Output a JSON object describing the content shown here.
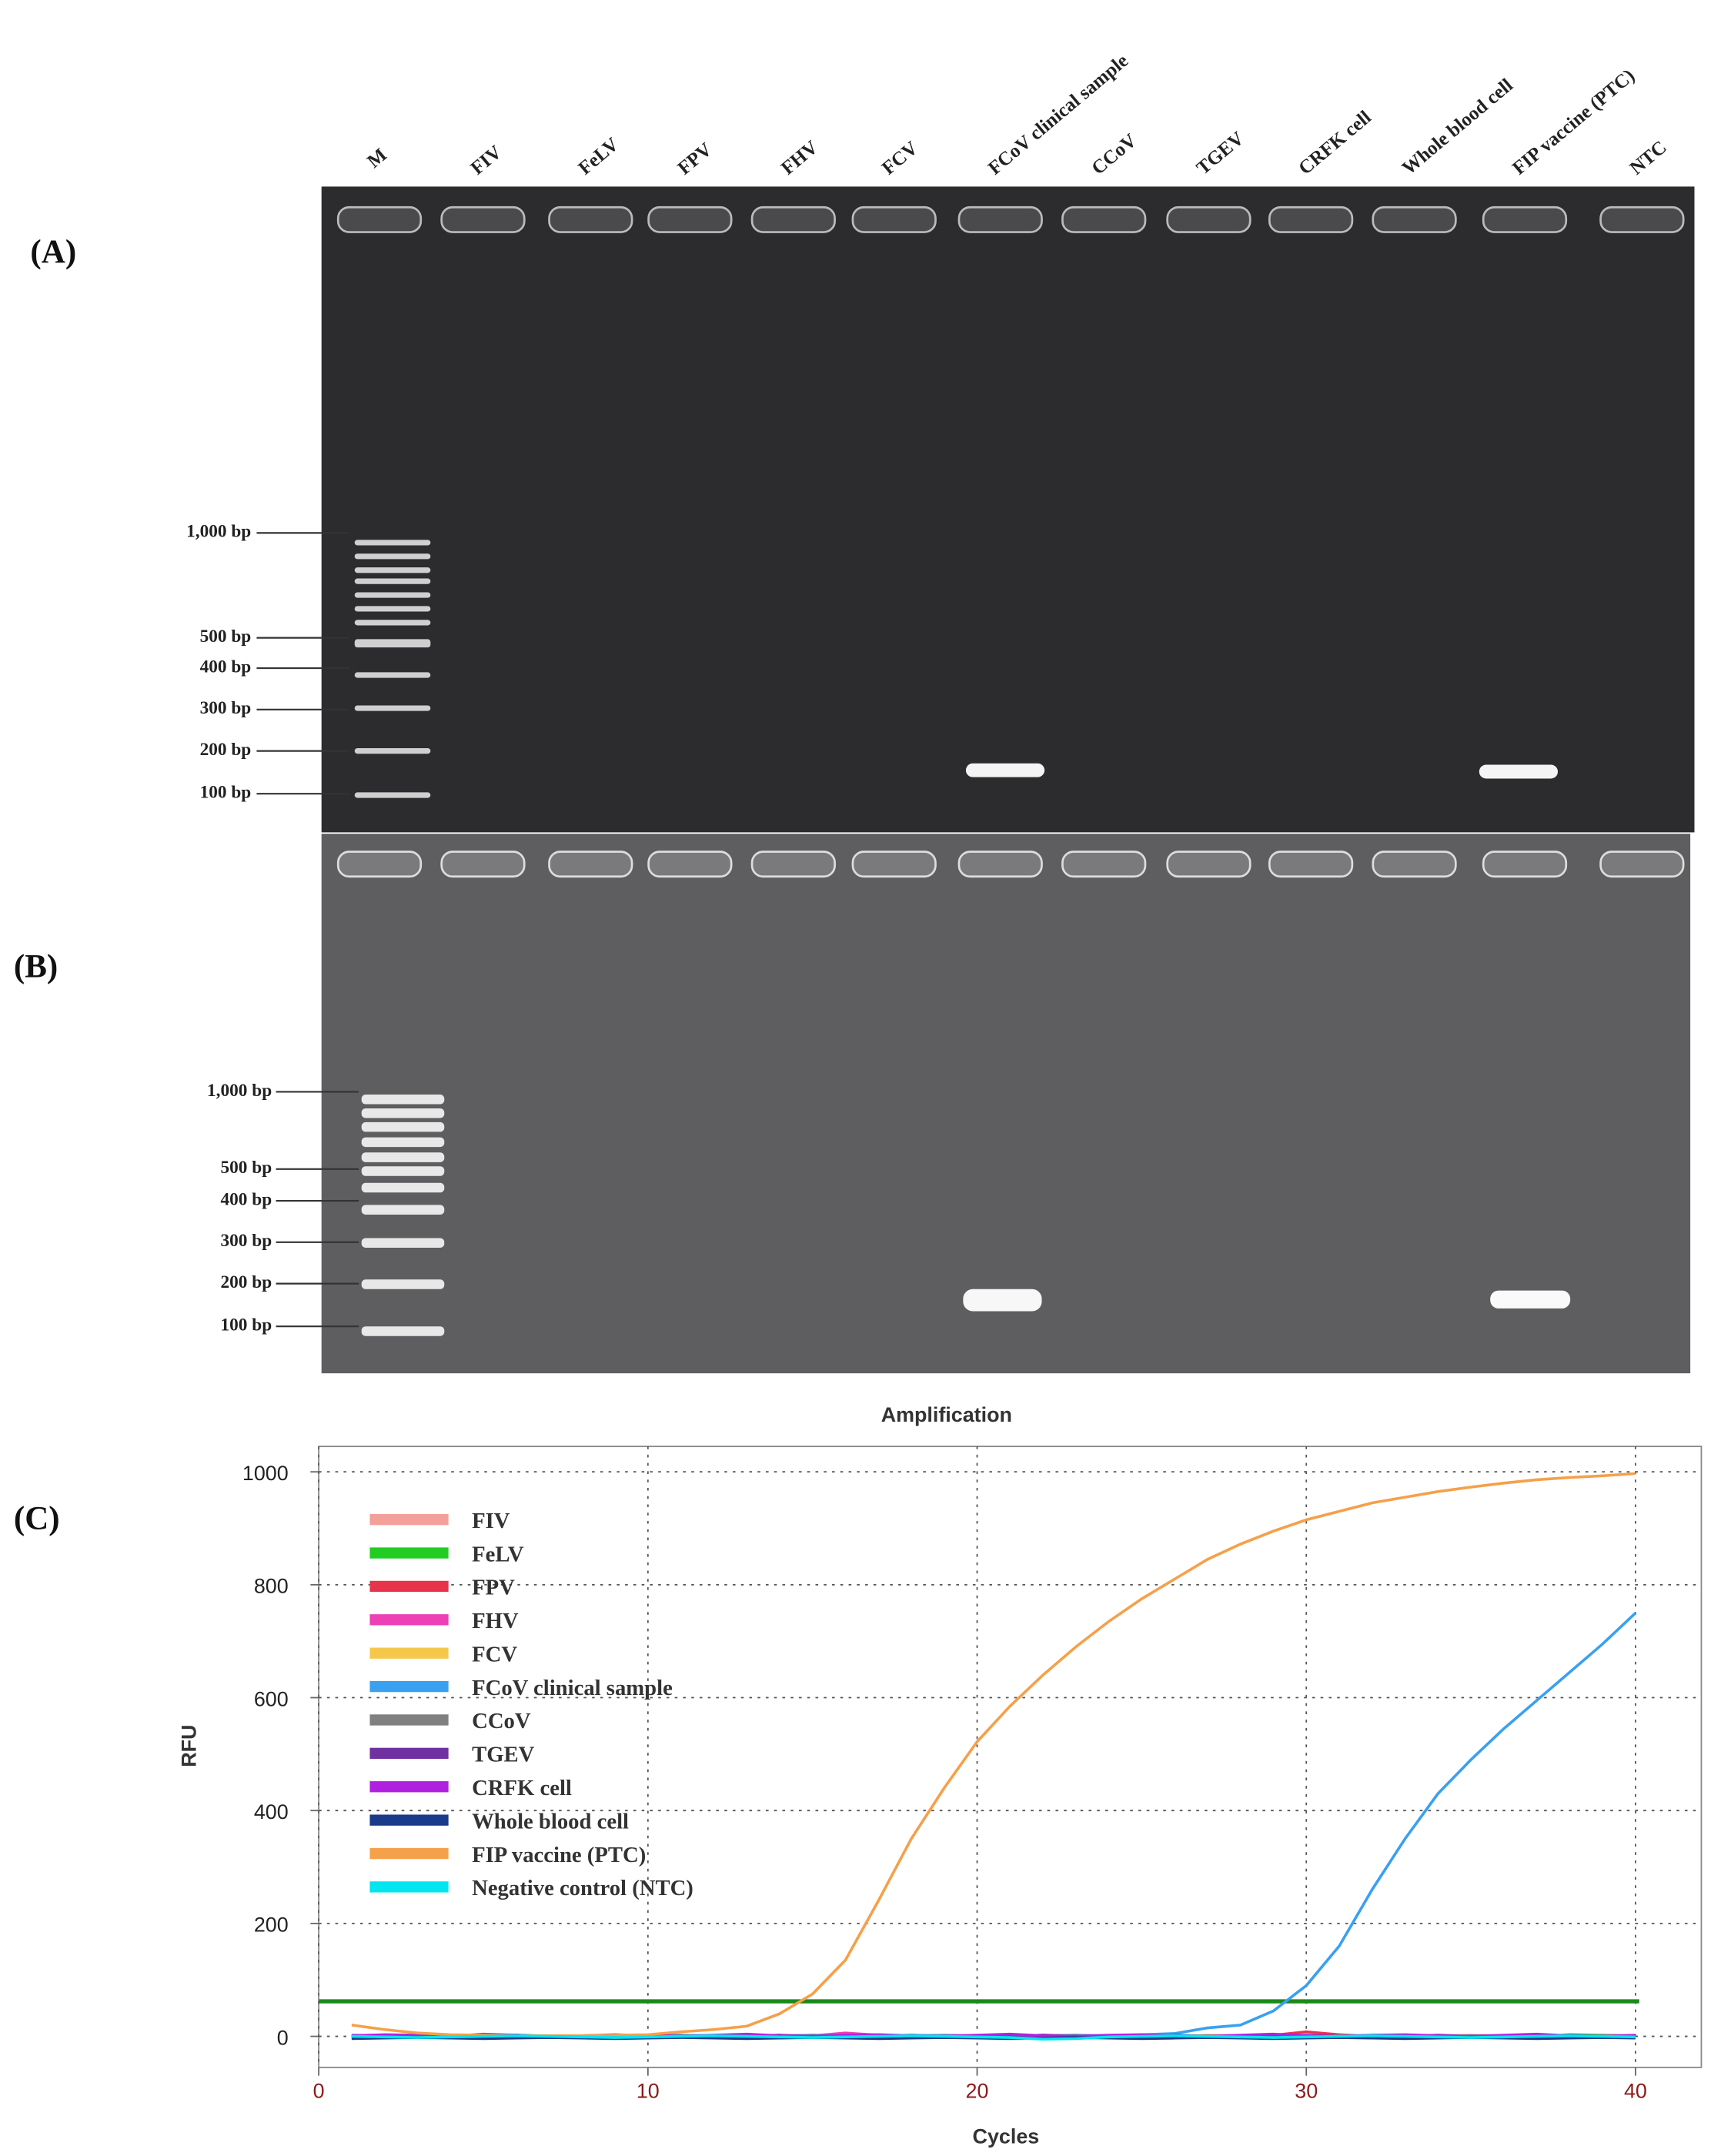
{
  "lanes": [
    "M",
    "FIV",
    "FeLV",
    "FPV",
    "FHV",
    "FCV",
    "FCoV clinical sample",
    "CCoV",
    "TGEV",
    "CRFK cell",
    "Whole blood cell",
    "FIP vaccine (PTC)",
    "NTC"
  ],
  "panel_a": {
    "label": "(A)",
    "markers": [
      "1,000 bp",
      "500 bp",
      "400 bp",
      "300 bp",
      "200 bp",
      "100 bp"
    ]
  },
  "panel_b": {
    "label": "(B)",
    "markers": [
      "1,000 bp",
      "500 bp",
      "400 bp",
      "300 bp",
      "200 bp",
      "100 bp"
    ]
  },
  "panel_c": {
    "label": "(C)"
  },
  "chart_data": {
    "type": "line",
    "title": "Amplification",
    "x_label": "Cycles",
    "y_label": "RFU",
    "xlim": [
      0,
      42
    ],
    "ylim": [
      -55,
      1045
    ],
    "xticks": [
      0,
      10,
      20,
      30,
      40
    ],
    "yticks": [
      0,
      200,
      400,
      600,
      800,
      1000
    ],
    "grid": true,
    "legend": "upper left",
    "threshold": 62,
    "threshold_color": "#1a8a1a",
    "x": [
      1,
      2,
      3,
      4,
      5,
      6,
      7,
      8,
      9,
      10,
      11,
      12,
      13,
      14,
      15,
      16,
      17,
      18,
      19,
      20,
      21,
      22,
      23,
      24,
      25,
      26,
      27,
      28,
      29,
      30,
      31,
      32,
      33,
      34,
      35,
      36,
      37,
      38,
      39,
      40
    ],
    "series": [
      {
        "name": "FIV",
        "color": "#f4a09a",
        "values": [
          2,
          1,
          0,
          -1,
          1,
          2,
          0,
          -1,
          0,
          1,
          2,
          1,
          0,
          -1,
          0,
          1,
          2,
          0,
          -1,
          0,
          1,
          2,
          1,
          0,
          -1,
          0,
          1,
          0,
          2,
          1,
          0,
          -1,
          0,
          1,
          2,
          1,
          0,
          -1,
          0,
          1
        ]
      },
      {
        "name": "FeLV",
        "color": "#22cc22",
        "values": [
          -2,
          -1,
          0,
          1,
          0,
          -1,
          -2,
          0,
          1,
          0,
          -1,
          0,
          1,
          2,
          0,
          -1,
          0,
          1,
          0,
          -1,
          0,
          1,
          2,
          0,
          -1,
          0,
          1,
          0,
          -1,
          0,
          1,
          0,
          -1,
          0,
          1,
          0,
          -1,
          3,
          2,
          1
        ]
      },
      {
        "name": "FPV",
        "color": "#e8344a",
        "values": [
          0,
          1,
          2,
          1,
          0,
          -1,
          0,
          1,
          0,
          2,
          1,
          0,
          -1,
          0,
          2,
          1,
          0,
          -1,
          0,
          1,
          0,
          2,
          1,
          0,
          -1,
          0,
          1,
          0,
          2,
          8,
          3,
          0,
          -1,
          0,
          1,
          0,
          -1,
          0,
          1,
          0
        ]
      },
      {
        "name": "FHV",
        "color": "#ec40b4",
        "values": [
          1,
          0,
          -1,
          0,
          2,
          1,
          0,
          -1,
          0,
          1,
          2,
          0,
          -1,
          0,
          1,
          6,
          2,
          0,
          -1,
          0,
          1,
          0,
          -1,
          0,
          1,
          2,
          0,
          -1,
          0,
          1,
          0,
          2,
          1,
          0,
          -1,
          0,
          1,
          0,
          -1,
          0
        ]
      },
      {
        "name": "FCV",
        "color": "#f5c84c",
        "values": [
          0,
          -1,
          0,
          1,
          0,
          2,
          1,
          0,
          -1,
          0,
          1,
          0,
          2,
          1,
          0,
          -1,
          0,
          1,
          0,
          2,
          1,
          0,
          -1,
          0,
          1,
          0,
          2,
          1,
          0,
          -1,
          0,
          1,
          0,
          2,
          1,
          0,
          -1,
          0,
          1,
          0
        ]
      },
      {
        "name": "FCoV clinical sample",
        "color": "#3aa0f0",
        "values": [
          2,
          1,
          0,
          1,
          2,
          1,
          0,
          1,
          2,
          1,
          2,
          1,
          0,
          1,
          2,
          1,
          0,
          1,
          2,
          1,
          0,
          1,
          2,
          1,
          3,
          5,
          15,
          20,
          45,
          90,
          160,
          260,
          350,
          430,
          490,
          545,
          595,
          645,
          695,
          750
        ]
      },
      {
        "name": "CCoV",
        "color": "#808080",
        "values": [
          -1,
          0,
          1,
          0,
          -1,
          0,
          1,
          0,
          -1,
          0,
          1,
          0,
          -1,
          0,
          1,
          0,
          -1,
          0,
          1,
          0,
          -1,
          0,
          1,
          0,
          -1,
          0,
          1,
          0,
          -1,
          0,
          1,
          0,
          -1,
          0,
          1,
          0,
          -1,
          0,
          1,
          0
        ]
      },
      {
        "name": "TGEV",
        "color": "#7030a0",
        "values": [
          0,
          2,
          0,
          -2,
          0,
          2,
          0,
          -2,
          0,
          2,
          0,
          -2,
          0,
          2,
          0,
          -2,
          0,
          2,
          0,
          -2,
          0,
          2,
          0,
          -2,
          0,
          2,
          0,
          -2,
          0,
          2,
          0,
          -2,
          0,
          2,
          0,
          -2,
          0,
          2,
          0,
          -2
        ]
      },
      {
        "name": "CRFK cell",
        "color": "#b020e0",
        "values": [
          1,
          3,
          2,
          0,
          4,
          2,
          0,
          1,
          3,
          1,
          0,
          2,
          4,
          1,
          0,
          2,
          3,
          1,
          0,
          2,
          4,
          1,
          0,
          2,
          3,
          1,
          0,
          2,
          4,
          1,
          0,
          2,
          3,
          1,
          0,
          2,
          4,
          1,
          0,
          2
        ]
      },
      {
        "name": "Whole blood cell",
        "color": "#1a3a8a",
        "values": [
          -4,
          -3,
          -2,
          -3,
          -4,
          -3,
          -2,
          -3,
          -4,
          -3,
          -2,
          -3,
          -4,
          -3,
          -2,
          -3,
          -4,
          -3,
          -2,
          -3,
          -4,
          -3,
          -2,
          -3,
          -4,
          -3,
          -2,
          -3,
          -4,
          -3,
          -2,
          -3,
          -4,
          -3,
          -2,
          -3,
          -4,
          -3,
          -2,
          -3
        ]
      },
      {
        "name": "FIP vaccine (PTC)",
        "color": "#f5a04a",
        "values": [
          20,
          12,
          6,
          3,
          2,
          1,
          1,
          1,
          2,
          3,
          8,
          12,
          18,
          40,
          75,
          135,
          240,
          350,
          440,
          522,
          585,
          640,
          690,
          735,
          775,
          810,
          845,
          872,
          895,
          915,
          930,
          945,
          955,
          965,
          973,
          980,
          986,
          990,
          993,
          997
        ]
      },
      {
        "name": "Negative control (NTC)",
        "color": "#00e5ee",
        "values": [
          0,
          -1,
          -2,
          -1,
          0,
          1,
          0,
          -1,
          -2,
          -1,
          0,
          1,
          0,
          -1,
          -2,
          -1,
          0,
          1,
          0,
          -1,
          -2,
          -5,
          -4,
          -1,
          0,
          1,
          0,
          -1,
          -2,
          -1,
          0,
          1,
          0,
          -1,
          -2,
          -1,
          0,
          1,
          0,
          -1
        ]
      }
    ]
  }
}
